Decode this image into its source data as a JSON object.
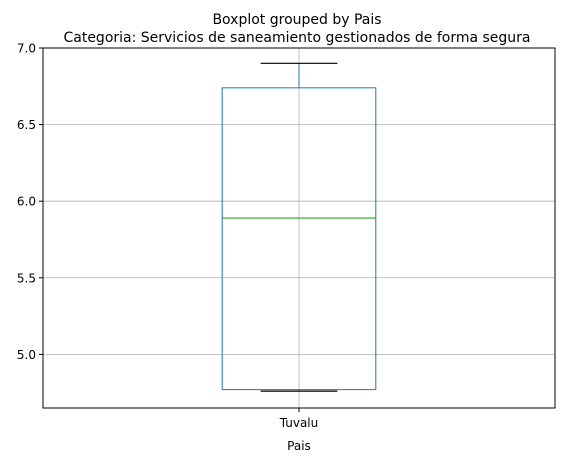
{
  "chart_data": {
    "type": "box",
    "suptitle": "Boxplot grouped by Pais",
    "title": "Categoria: Servicios de saneamiento gestionados de forma segura",
    "xlabel": "Pais",
    "ylabel": "",
    "categories": [
      "Tuvalu"
    ],
    "boxes": [
      {
        "category": "Tuvalu",
        "whisker_low": 4.76,
        "q1": 4.77,
        "median": 5.89,
        "q3": 6.74,
        "whisker_high": 6.9
      }
    ],
    "yticks": [
      5.0,
      5.5,
      6.0,
      6.5,
      7.0
    ],
    "ytick_labels": [
      "5.0",
      "5.5",
      "6.0",
      "6.5",
      "7.0"
    ],
    "ylim": [
      4.65,
      7.0
    ],
    "grid": true,
    "colors": {
      "box": "#1f77b4",
      "median": "#2ca02c",
      "whisker_cap": "#000000",
      "grid": "#b0b0b0"
    }
  }
}
